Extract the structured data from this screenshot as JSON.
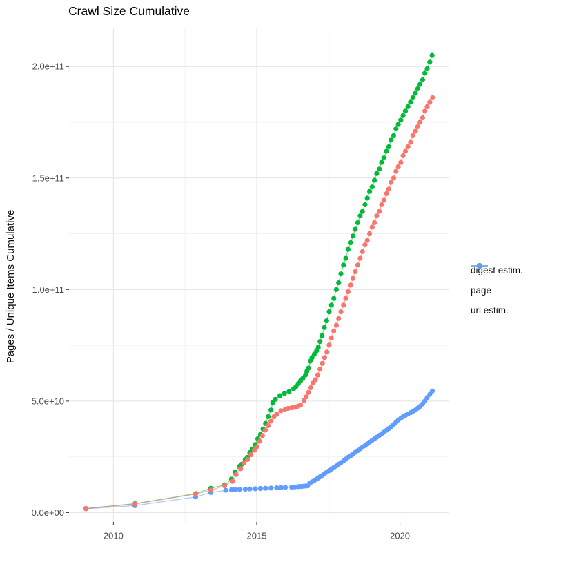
{
  "chart_data": {
    "type": "scatter",
    "title": "Crawl Size Cumulative",
    "xlabel": "",
    "ylabel": "Pages / Unique Items Cumulative",
    "xlim": [
      2008.45,
      2021.72
    ],
    "ylim": [
      -4200000000.0,
      217400000000.0
    ],
    "grid": "on",
    "legend_position": "right",
    "x_axis": {
      "ticks": [
        {
          "v": 2010,
          "label": "2010"
        },
        {
          "v": 2015,
          "label": "2015"
        },
        {
          "v": 2020,
          "label": "2020"
        }
      ],
      "minor": [
        2012.5,
        2017.5
      ]
    },
    "y_axis": {
      "ticks": [
        {
          "v": 0,
          "label": "0.0e+00"
        },
        {
          "v": 50000000000.0,
          "label": "5.0e+10"
        },
        {
          "v": 100000000000.0,
          "label": "1.0e+11"
        },
        {
          "v": 150000000000.0,
          "label": "1.5e+11"
        },
        {
          "v": 200000000000.0,
          "label": "2.0e+11"
        }
      ],
      "minor": [
        25000000000.0,
        75000000000.0,
        125000000000.0,
        175000000000.0
      ]
    },
    "style": {
      "grid_major_color": "#e3e3e3",
      "grid_minor_color": "#f2f2f2",
      "tick_color": "#333333",
      "tick_label_color": "#4d4d4d",
      "text_color": "#111111",
      "background": "#ffffff"
    },
    "series": [
      {
        "name": "digest estim.",
        "color": "#F8766D",
        "points": [
          [
            2009.04,
            1800000000.0
          ],
          [
            2010.75,
            3850000000.0
          ],
          [
            2012.87,
            8300000000.0
          ],
          [
            2013.4,
            10100000000.0
          ],
          [
            2013.88,
            12000000000.0
          ],
          [
            2014.16,
            14000000000.0
          ],
          [
            2014.28,
            17100000000.0
          ],
          [
            2014.44,
            19700000000.0
          ],
          [
            2014.56,
            22300000000.0
          ],
          [
            2014.68,
            23800000000.0
          ],
          [
            2014.8,
            25900000000.0
          ],
          [
            2014.92,
            28000000000.0
          ],
          [
            2015.0,
            29500000000.0
          ],
          [
            2015.1,
            32000000000.0
          ],
          [
            2015.2,
            34500000000.0
          ],
          [
            2015.3,
            37000000000.0
          ],
          [
            2015.4,
            39000000000.0
          ],
          [
            2015.5,
            41000000000.0
          ],
          [
            2015.6,
            43000000000.0
          ],
          [
            2015.7,
            44100000000.0
          ],
          [
            2015.85,
            45700000000.0
          ],
          [
            2016.0,
            46400000000.0
          ],
          [
            2016.1,
            46700000000.0
          ],
          [
            2016.22,
            47000000000.0
          ],
          [
            2016.33,
            47200000000.0
          ],
          [
            2016.44,
            47700000000.0
          ],
          [
            2016.53,
            48200000000.0
          ],
          [
            2016.65,
            50300000000.0
          ],
          [
            2016.73,
            51900000000.0
          ],
          [
            2016.81,
            53900000000.0
          ],
          [
            2016.89,
            56000000000.0
          ],
          [
            2016.97,
            58100000000.0
          ],
          [
            2017.05,
            59600000000.0
          ],
          [
            2017.13,
            61700000000.0
          ],
          [
            2017.21,
            64300000000.0
          ],
          [
            2017.29,
            66900000000.0
          ],
          [
            2017.37,
            69500000000.0
          ],
          [
            2017.45,
            72000000000.0
          ],
          [
            2017.53,
            75100000000.0
          ],
          [
            2017.61,
            78300000000.0
          ],
          [
            2017.69,
            81400000000.0
          ],
          [
            2017.78,
            84000000000.0
          ],
          [
            2017.86,
            87000000000.0
          ],
          [
            2017.94,
            90000000000.0
          ],
          [
            2018.03,
            93000000000.0
          ],
          [
            2018.11,
            96000000000.0
          ],
          [
            2018.19,
            99000000000.0
          ],
          [
            2018.28,
            102000000000.0
          ],
          [
            2018.36,
            105000000000.0
          ],
          [
            2018.44,
            108000000000.0
          ],
          [
            2018.53,
            111000000000.0
          ],
          [
            2018.61,
            114000000000.0
          ],
          [
            2018.69,
            117000000000.0
          ],
          [
            2018.78,
            120000000000.0
          ],
          [
            2018.86,
            122000000000.0
          ],
          [
            2018.94,
            125000000000.0
          ],
          [
            2019.03,
            128000000000.0
          ],
          [
            2019.11,
            130000000000.0
          ],
          [
            2019.19,
            133000000000.0
          ],
          [
            2019.28,
            135000000000.0
          ],
          [
            2019.36,
            138000000000.0
          ],
          [
            2019.44,
            140000000000.0
          ],
          [
            2019.53,
            143000000000.0
          ],
          [
            2019.61,
            145000000000.0
          ],
          [
            2019.69,
            148000000000.0
          ],
          [
            2019.78,
            150000000000.0
          ],
          [
            2019.86,
            153000000000.0
          ],
          [
            2019.94,
            155000000000.0
          ],
          [
            2020.03,
            157000000000.0
          ],
          [
            2020.11,
            160000000000.0
          ],
          [
            2020.19,
            162000000000.0
          ],
          [
            2020.28,
            164000000000.0
          ],
          [
            2020.37,
            166000000000.0
          ],
          [
            2020.45,
            169000000000.0
          ],
          [
            2020.54,
            171000000000.0
          ],
          [
            2020.62,
            173000000000.0
          ],
          [
            2020.7,
            175000000000.0
          ],
          [
            2020.79,
            177000000000.0
          ],
          [
            2020.87,
            180000000000.0
          ],
          [
            2020.95,
            182000000000.0
          ],
          [
            2021.04,
            184000000000.0
          ],
          [
            2021.14,
            186000000000.0
          ]
        ]
      },
      {
        "name": "page",
        "color": "#00BA38",
        "points": [
          [
            2009.04,
            1850000000.0
          ],
          [
            2010.75,
            4000000000.0
          ],
          [
            2012.87,
            8500000000.0
          ],
          [
            2013.4,
            10900000000.0
          ],
          [
            2013.88,
            12400000000.0
          ],
          [
            2014.12,
            15000000000.0
          ],
          [
            2014.24,
            18100000000.0
          ],
          [
            2014.4,
            20700000000.0
          ],
          [
            2014.48,
            21700000000.0
          ],
          [
            2014.6,
            23800000000.0
          ],
          [
            2014.68,
            24800000000.0
          ],
          [
            2014.76,
            26900000000.0
          ],
          [
            2014.85,
            28500000000.0
          ],
          [
            2014.95,
            30500000000.0
          ],
          [
            2015.04,
            33100000000.0
          ],
          [
            2015.13,
            35000000000.0
          ],
          [
            2015.22,
            37500000000.0
          ],
          [
            2015.31,
            40000000000.0
          ],
          [
            2015.4,
            43000000000.0
          ],
          [
            2015.5,
            46000000000.0
          ],
          [
            2015.56,
            49300000000.0
          ],
          [
            2015.65,
            50800000000.0
          ],
          [
            2015.81,
            52400000000.0
          ],
          [
            2015.97,
            53400000000.0
          ],
          [
            2016.13,
            54300000000.0
          ],
          [
            2016.29,
            55500000000.0
          ],
          [
            2016.37,
            56500000000.0
          ],
          [
            2016.45,
            57800000000.0
          ],
          [
            2016.53,
            59100000000.0
          ],
          [
            2016.61,
            60200000000.0
          ],
          [
            2016.7,
            61700000000.0
          ],
          [
            2016.75,
            63300000000.0
          ],
          [
            2016.81,
            64800000000.0
          ],
          [
            2016.87,
            67900000000.0
          ],
          [
            2016.93,
            69500000000.0
          ],
          [
            2017.01,
            71000000000.0
          ],
          [
            2017.09,
            72600000000.0
          ],
          [
            2017.15,
            74100000000.0
          ],
          [
            2017.21,
            76700000000.0
          ],
          [
            2017.28,
            79300000000.0
          ],
          [
            2017.36,
            83000000000.0
          ],
          [
            2017.44,
            86000000000.0
          ],
          [
            2017.53,
            90000000000.0
          ],
          [
            2017.61,
            93000000000.0
          ],
          [
            2017.69,
            96000000000.0
          ],
          [
            2017.78,
            100000000000.0
          ],
          [
            2017.86,
            103000000000.0
          ],
          [
            2017.94,
            107000000000.0
          ],
          [
            2018.03,
            111000000000.0
          ],
          [
            2018.11,
            114000000000.0
          ],
          [
            2018.19,
            118000000000.0
          ],
          [
            2018.28,
            121000000000.0
          ],
          [
            2018.36,
            124000000000.0
          ],
          [
            2018.44,
            127000000000.0
          ],
          [
            2018.53,
            130000000000.0
          ],
          [
            2018.61,
            133000000000.0
          ],
          [
            2018.69,
            135000000000.0
          ],
          [
            2018.78,
            138000000000.0
          ],
          [
            2018.86,
            141000000000.0
          ],
          [
            2018.94,
            144000000000.0
          ],
          [
            2019.03,
            146000000000.0
          ],
          [
            2019.11,
            149000000000.0
          ],
          [
            2019.19,
            152000000000.0
          ],
          [
            2019.28,
            154000000000.0
          ],
          [
            2019.36,
            157000000000.0
          ],
          [
            2019.44,
            159000000000.0
          ],
          [
            2019.53,
            162000000000.0
          ],
          [
            2019.61,
            164000000000.0
          ],
          [
            2019.69,
            167000000000.0
          ],
          [
            2019.78,
            169000000000.0
          ],
          [
            2019.86,
            172000000000.0
          ],
          [
            2019.94,
            174000000000.0
          ],
          [
            2020.03,
            176000000000.0
          ],
          [
            2020.11,
            178000000000.0
          ],
          [
            2020.19,
            180000000000.0
          ],
          [
            2020.28,
            182000000000.0
          ],
          [
            2020.37,
            184000000000.0
          ],
          [
            2020.45,
            186000000000.0
          ],
          [
            2020.54,
            188000000000.0
          ],
          [
            2020.62,
            190000000000.0
          ],
          [
            2020.7,
            192000000000.0
          ],
          [
            2020.79,
            194000000000.0
          ],
          [
            2020.87,
            197000000000.0
          ],
          [
            2020.95,
            199000000000.0
          ],
          [
            2021.04,
            202000000000.0
          ],
          [
            2021.12,
            205000000000.0
          ]
        ]
      },
      {
        "name": "url estim.",
        "color": "#619CFF",
        "points": [
          [
            2009.04,
            1700000000.0
          ],
          [
            2010.75,
            3100000000.0
          ],
          [
            2012.87,
            7050000000.0
          ],
          [
            2013.4,
            9000000000.0
          ],
          [
            2013.92,
            10000000000.0
          ],
          [
            2014.12,
            10200000000.0
          ],
          [
            2014.24,
            10300000000.0
          ],
          [
            2014.4,
            10400000000.0
          ],
          [
            2014.6,
            10500000000.0
          ],
          [
            2014.76,
            10600000000.0
          ],
          [
            2014.95,
            10700000000.0
          ],
          [
            2015.13,
            10800000000.0
          ],
          [
            2015.31,
            10900000000.0
          ],
          [
            2015.5,
            11000000000.0
          ],
          [
            2015.7,
            11100000000.0
          ],
          [
            2015.85,
            11200000000.0
          ],
          [
            2016.0,
            11300000000.0
          ],
          [
            2016.22,
            11400000000.0
          ],
          [
            2016.33,
            11500000000.0
          ],
          [
            2016.45,
            11600000000.0
          ],
          [
            2016.53,
            11700000000.0
          ],
          [
            2016.61,
            11800000000.0
          ],
          [
            2016.7,
            11900000000.0
          ],
          [
            2016.78,
            12000000000.0
          ],
          [
            2016.85,
            13200000000.0
          ],
          [
            2016.93,
            13800000000.0
          ],
          [
            2017.01,
            14400000000.0
          ],
          [
            2017.09,
            15000000000.0
          ],
          [
            2017.15,
            15500000000.0
          ],
          [
            2017.21,
            16000000000.0
          ],
          [
            2017.28,
            16600000000.0
          ],
          [
            2017.37,
            17500000000.0
          ],
          [
            2017.45,
            18200000000.0
          ],
          [
            2017.53,
            18800000000.0
          ],
          [
            2017.61,
            19500000000.0
          ],
          [
            2017.69,
            20200000000.0
          ],
          [
            2017.78,
            20900000000.0
          ],
          [
            2017.86,
            21700000000.0
          ],
          [
            2017.94,
            22400000000.0
          ],
          [
            2018.03,
            23200000000.0
          ],
          [
            2018.11,
            24000000000.0
          ],
          [
            2018.19,
            24800000000.0
          ],
          [
            2018.28,
            25500000000.0
          ],
          [
            2018.36,
            26200000000.0
          ],
          [
            2018.44,
            27000000000.0
          ],
          [
            2018.53,
            27800000000.0
          ],
          [
            2018.61,
            28600000000.0
          ],
          [
            2018.69,
            29300000000.0
          ],
          [
            2018.78,
            30000000000.0
          ],
          [
            2018.86,
            30800000000.0
          ],
          [
            2018.94,
            31600000000.0
          ],
          [
            2019.03,
            32400000000.0
          ],
          [
            2019.11,
            33100000000.0
          ],
          [
            2019.19,
            33800000000.0
          ],
          [
            2019.28,
            34600000000.0
          ],
          [
            2019.36,
            35400000000.0
          ],
          [
            2019.44,
            36100000000.0
          ],
          [
            2019.53,
            36900000000.0
          ],
          [
            2019.61,
            37700000000.0
          ],
          [
            2019.69,
            38500000000.0
          ],
          [
            2019.78,
            39500000000.0
          ],
          [
            2019.86,
            40500000000.0
          ],
          [
            2019.94,
            41500000000.0
          ],
          [
            2020.03,
            42300000000.0
          ],
          [
            2020.11,
            43000000000.0
          ],
          [
            2020.19,
            43600000000.0
          ],
          [
            2020.28,
            44200000000.0
          ],
          [
            2020.37,
            44800000000.0
          ],
          [
            2020.45,
            45400000000.0
          ],
          [
            2020.54,
            46000000000.0
          ],
          [
            2020.62,
            46800000000.0
          ],
          [
            2020.7,
            47600000000.0
          ],
          [
            2020.79,
            48700000000.0
          ],
          [
            2020.87,
            50000000000.0
          ],
          [
            2020.95,
            51500000000.0
          ],
          [
            2021.04,
            53000000000.0
          ],
          [
            2021.13,
            54500000000.0
          ]
        ]
      }
    ]
  }
}
